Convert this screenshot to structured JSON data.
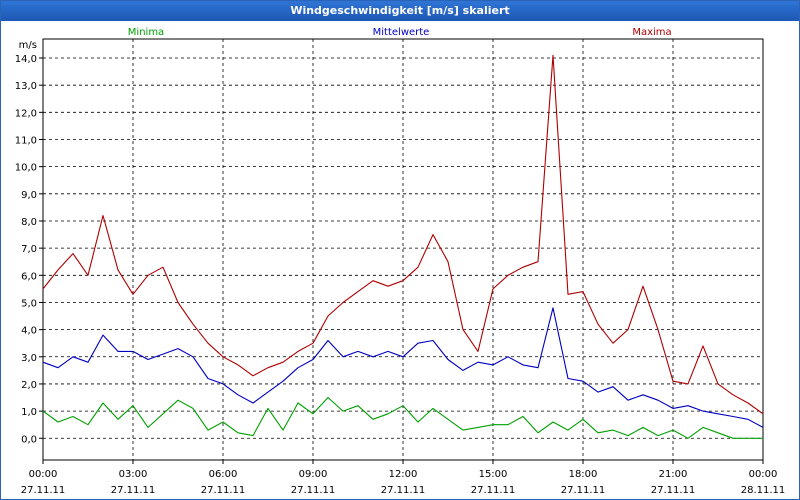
{
  "window": {
    "title": "Windgeschwindigkeit [m/s] skaliert"
  },
  "chart_data": {
    "type": "line",
    "title": "Windgeschwindigkeit [m/s] skaliert",
    "ylabel": "m/s",
    "ylim": [
      -0.8,
      14.7
    ],
    "yticks": [
      "0,0",
      "1,0",
      "2,0",
      "3,0",
      "4,0",
      "5,0",
      "6,0",
      "7,0",
      "8,0",
      "9,0",
      "10,0",
      "11,0",
      "12,0",
      "13,0",
      "14,0"
    ],
    "xlim": [
      0,
      24
    ],
    "xticks": [
      {
        "time": "00:00",
        "date": "27.11.11"
      },
      {
        "time": "03:00",
        "date": "27.11.11"
      },
      {
        "time": "06:00",
        "date": "27.11.11"
      },
      {
        "time": "09:00",
        "date": "27.11.11"
      },
      {
        "time": "12:00",
        "date": "27.11.11"
      },
      {
        "time": "15:00",
        "date": "27.11.11"
      },
      {
        "time": "18:00",
        "date": "27.11.11"
      },
      {
        "time": "21:00",
        "date": "27.11.11"
      },
      {
        "time": "00:00",
        "date": "28.11.11"
      }
    ],
    "legend": [
      "Minima",
      "Mittelwerte",
      "Maxima"
    ],
    "x_hours": [
      0,
      0.5,
      1,
      1.5,
      2,
      2.5,
      3,
      3.5,
      4,
      4.5,
      5,
      5.5,
      6,
      6.5,
      7,
      7.5,
      8,
      8.5,
      9,
      9.5,
      10,
      10.5,
      11,
      11.5,
      12,
      12.5,
      13,
      13.5,
      14,
      14.5,
      15,
      15.5,
      16,
      16.5,
      17,
      17.5,
      18,
      18.5,
      19,
      19.5,
      20,
      20.5,
      21,
      21.5,
      22,
      22.5,
      23,
      23.5,
      24
    ],
    "series": [
      {
        "name": "Minima",
        "color": "#00a000",
        "values": [
          1.0,
          0.6,
          0.8,
          0.5,
          1.3,
          0.7,
          1.2,
          0.4,
          0.9,
          1.4,
          1.1,
          0.3,
          0.6,
          0.2,
          0.1,
          1.1,
          0.3,
          1.3,
          0.9,
          1.5,
          1.0,
          1.2,
          0.7,
          0.9,
          1.2,
          0.6,
          1.1,
          0.7,
          0.3,
          0.4,
          0.5,
          0.5,
          0.8,
          0.2,
          0.6,
          0.3,
          0.7,
          0.2,
          0.3,
          0.1,
          0.4,
          0.1,
          0.3,
          0.0,
          0.4,
          0.2,
          0.0,
          0.0,
          0.0
        ]
      },
      {
        "name": "Mittelwerte",
        "color": "#0000c0",
        "values": [
          2.8,
          2.6,
          3.0,
          2.8,
          3.8,
          3.2,
          3.2,
          2.9,
          3.1,
          3.3,
          3.0,
          2.2,
          2.0,
          1.6,
          1.3,
          1.7,
          2.1,
          2.6,
          2.9,
          3.6,
          3.0,
          3.2,
          3.0,
          3.2,
          3.0,
          3.5,
          3.6,
          2.9,
          2.5,
          2.8,
          2.7,
          3.0,
          2.7,
          2.6,
          4.8,
          2.2,
          2.1,
          1.7,
          1.9,
          1.4,
          1.6,
          1.4,
          1.1,
          1.2,
          1.0,
          0.9,
          0.8,
          0.7,
          0.4
        ]
      },
      {
        "name": "Maxima",
        "color": "#b00000",
        "values": [
          5.5,
          6.2,
          6.8,
          6.0,
          8.2,
          6.2,
          5.3,
          6.0,
          6.3,
          5.0,
          4.2,
          3.5,
          3.0,
          2.7,
          2.3,
          2.6,
          2.8,
          3.2,
          3.5,
          4.5,
          5.0,
          5.4,
          5.8,
          5.6,
          5.8,
          6.3,
          7.5,
          6.5,
          4.0,
          3.2,
          5.5,
          6.0,
          6.3,
          6.5,
          14.1,
          5.3,
          5.4,
          4.2,
          3.5,
          4.0,
          5.6,
          4.0,
          2.1,
          2.0,
          3.4,
          2.0,
          1.6,
          1.3,
          0.9
        ]
      }
    ]
  }
}
